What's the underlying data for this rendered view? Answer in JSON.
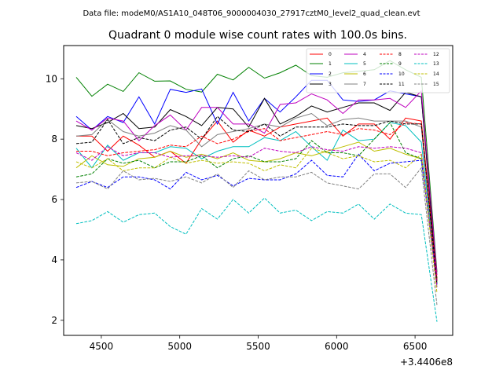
{
  "header": {
    "data_file": "Data file: modeM0/AS1A10_048T06_9000004030_27917cztM0_level2_quad_clean.evt"
  },
  "chart_data": {
    "type": "line",
    "title": "Quadrant 0 module wise count rates with 100.0s bins.",
    "xlabel": "",
    "ylabel": "",
    "x_offset_label": "+3.4406e8",
    "xlim": [
      4260,
      6740
    ],
    "ylim": [
      1.5,
      11.1
    ],
    "xticks": [
      4500,
      5000,
      5500,
      6000,
      6500
    ],
    "yticks": [
      2,
      4,
      6,
      8,
      10
    ],
    "legend_position": "top-right",
    "x": [
      4340,
      4440,
      4540,
      4640,
      4740,
      4840,
      4940,
      5040,
      5140,
      5240,
      5340,
      5440,
      5540,
      5640,
      5740,
      5840,
      5940,
      6040,
      6140,
      6240,
      6340,
      6440,
      6540,
      6640
    ],
    "series": [
      {
        "name": "0",
        "color": "#ff0000",
        "dash": false,
        "values": [
          8.1,
          8.1,
          7.6,
          8.1,
          7.8,
          7.4,
          7.6,
          7.2,
          8.0,
          8.6,
          7.9,
          8.3,
          8.1,
          8.4,
          8.5,
          8.6,
          8.7,
          8.1,
          8.5,
          8.5,
          8.0,
          8.7,
          8.6,
          3.4
        ]
      },
      {
        "name": "1",
        "color": "#008000",
        "dash": false,
        "values": [
          10.05,
          9.42,
          9.82,
          9.58,
          10.2,
          9.92,
          9.93,
          9.65,
          9.56,
          10.15,
          9.96,
          10.38,
          10.02,
          10.2,
          10.45,
          10.1,
          10.05,
          10.2,
          10.25,
          10.3,
          10.6,
          10.3,
          10.05,
          3.6
        ]
      },
      {
        "name": "2",
        "color": "#0000ff",
        "dash": false,
        "values": [
          8.75,
          8.3,
          8.75,
          8.55,
          9.4,
          8.5,
          9.65,
          9.55,
          9.66,
          8.5,
          9.55,
          8.6,
          9.35,
          8.9,
          9.4,
          9.95,
          9.95,
          9.3,
          9.25,
          9.3,
          9.6,
          9.5,
          9.4,
          3.3
        ]
      },
      {
        "name": "3",
        "color": "#000000",
        "dash": false,
        "values": [
          8.45,
          8.35,
          8.55,
          8.85,
          8.35,
          8.4,
          8.98,
          8.75,
          8.45,
          9.05,
          9.0,
          8.4,
          9.35,
          8.5,
          8.75,
          9.1,
          8.9,
          9.05,
          9.2,
          9.2,
          8.95,
          9.55,
          9.4,
          3.3
        ]
      },
      {
        "name": "4",
        "color": "#bf00bf",
        "dash": false,
        "values": [
          8.6,
          8.3,
          8.7,
          8.6,
          7.95,
          8.45,
          8.8,
          8.3,
          9.05,
          9.05,
          8.5,
          8.5,
          8.2,
          9.15,
          9.2,
          9.5,
          9.3,
          8.85,
          9.3,
          9.3,
          9.35,
          9.05,
          9.6,
          3.5
        ]
      },
      {
        "name": "5",
        "color": "#00bfbf",
        "dash": false,
        "values": [
          7.7,
          7.05,
          7.8,
          7.3,
          7.55,
          7.55,
          7.75,
          7.7,
          7.35,
          7.6,
          7.75,
          7.75,
          8.05,
          7.95,
          8.25,
          7.75,
          7.3,
          8.3,
          7.95,
          8.0,
          8.55,
          8.45,
          7.9,
          3.2
        ]
      },
      {
        "name": "6",
        "color": "#bfbf00",
        "dash": false,
        "values": [
          7.05,
          7.45,
          7.15,
          7.1,
          7.35,
          7.4,
          7.6,
          7.4,
          7.5,
          7.35,
          7.55,
          7.3,
          7.25,
          7.35,
          7.55,
          7.45,
          7.6,
          7.75,
          7.9,
          7.6,
          7.7,
          7.5,
          7.35,
          3.3
        ]
      },
      {
        "name": "7",
        "color": "#808080",
        "dash": false,
        "values": [
          8.1,
          8.15,
          8.65,
          8.25,
          8.1,
          8.2,
          8.45,
          8.3,
          7.75,
          8.15,
          8.25,
          8.35,
          8.5,
          8.4,
          8.7,
          8.85,
          8.45,
          8.65,
          8.7,
          8.6,
          8.6,
          8.6,
          8.4,
          3.1
        ]
      },
      {
        "name": "8",
        "color": "#ff0000",
        "dash": true,
        "values": [
          7.6,
          7.6,
          7.45,
          7.55,
          7.6,
          7.65,
          7.8,
          7.75,
          8.1,
          7.85,
          8.0,
          8.25,
          8.35,
          7.95,
          8.05,
          8.15,
          8.25,
          8.15,
          8.35,
          8.3,
          8.15,
          8.55,
          8.5,
          3.3
        ]
      },
      {
        "name": "9",
        "color": "#008000",
        "dash": true,
        "values": [
          6.75,
          6.85,
          7.35,
          7.2,
          7.3,
          7.05,
          7.25,
          7.25,
          7.45,
          7.05,
          7.35,
          7.45,
          7.25,
          7.25,
          7.35,
          7.95,
          7.55,
          7.55,
          7.45,
          8.0,
          8.55,
          7.55,
          7.35,
          3.2
        ]
      },
      {
        "name": "10",
        "color": "#0000ff",
        "dash": true,
        "values": [
          6.4,
          6.6,
          6.4,
          6.75,
          6.75,
          6.65,
          6.35,
          6.9,
          6.65,
          6.8,
          6.45,
          6.7,
          6.65,
          6.65,
          6.85,
          7.3,
          6.8,
          6.75,
          7.5,
          6.95,
          7.2,
          7.25,
          7.3,
          3.2
        ]
      },
      {
        "name": "11",
        "color": "#000000",
        "dash": true,
        "values": [
          7.85,
          7.9,
          8.65,
          7.85,
          8.05,
          7.95,
          8.3,
          8.4,
          8.0,
          8.75,
          8.3,
          8.25,
          8.5,
          8.1,
          8.4,
          8.4,
          8.4,
          8.5,
          8.45,
          8.45,
          8.6,
          8.5,
          8.5,
          3.2
        ]
      },
      {
        "name": "12",
        "color": "#bf00bf",
        "dash": true,
        "values": [
          7.55,
          7.3,
          7.75,
          7.45,
          7.55,
          7.55,
          7.4,
          7.45,
          7.45,
          7.4,
          7.45,
          7.4,
          7.7,
          7.6,
          7.55,
          7.75,
          7.65,
          7.6,
          7.75,
          7.7,
          7.75,
          7.7,
          7.55,
          3.1
        ]
      },
      {
        "name": "13",
        "color": "#00bfbf",
        "dash": true,
        "values": [
          5.2,
          5.3,
          5.6,
          5.25,
          5.5,
          5.55,
          5.1,
          4.85,
          5.7,
          5.35,
          6.0,
          5.55,
          6.05,
          5.55,
          5.65,
          5.3,
          5.6,
          5.55,
          5.85,
          5.35,
          5.85,
          5.55,
          5.5,
          1.95
        ]
      },
      {
        "name": "14",
        "color": "#bfbf00",
        "dash": true,
        "values": [
          7.25,
          7.05,
          7.35,
          6.95,
          7.05,
          7.05,
          7.4,
          7.2,
          7.3,
          7.2,
          7.25,
          7.2,
          6.95,
          7.15,
          7.05,
          7.7,
          7.55,
          7.35,
          7.45,
          7.25,
          7.3,
          7.05,
          7.5,
          2.9
        ]
      },
      {
        "name": "15",
        "color": "#808080",
        "dash": true,
        "values": [
          6.55,
          6.6,
          6.35,
          6.95,
          6.65,
          6.7,
          6.6,
          6.75,
          6.55,
          6.85,
          6.4,
          6.95,
          6.65,
          6.75,
          6.75,
          6.9,
          6.55,
          6.45,
          6.35,
          6.85,
          6.85,
          6.4,
          7.05,
          2.5
        ]
      }
    ]
  }
}
